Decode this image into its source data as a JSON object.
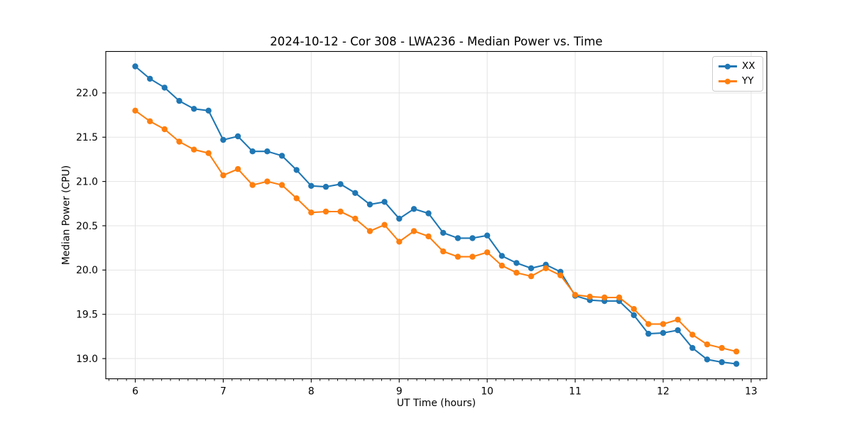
{
  "chart_data": {
    "type": "line",
    "title": "2024-10-12 - Cor 308 - LWA236 - Median Power vs. Time",
    "xlabel": "UT Time (hours)",
    "ylabel": "Median Power (CPU)",
    "grid": true,
    "grid_color": "#e3e3e3",
    "legend_position": "upper right",
    "xlim": [
      5.665,
      13.178
    ],
    "ylim": [
      18.772,
      22.468
    ],
    "xticks": [
      6,
      7,
      8,
      9,
      10,
      11,
      12,
      13
    ],
    "yticks": [
      19.0,
      19.5,
      20.0,
      20.5,
      21.0,
      21.5,
      22.0
    ],
    "x_minor_tick_step": 0.1,
    "marker": "o",
    "x": [
      6.0,
      6.167,
      6.333,
      6.5,
      6.667,
      6.833,
      7.0,
      7.167,
      7.333,
      7.5,
      7.667,
      7.833,
      8.0,
      8.167,
      8.333,
      8.5,
      8.667,
      8.833,
      9.0,
      9.167,
      9.333,
      9.5,
      9.667,
      9.833,
      10.0,
      10.167,
      10.333,
      10.5,
      10.667,
      10.833,
      11.0,
      11.167,
      11.333,
      11.5,
      11.667,
      11.833,
      12.0,
      12.167,
      12.333,
      12.5,
      12.667,
      12.833
    ],
    "series": [
      {
        "name": "XX",
        "color": "#1f77b4",
        "values": [
          22.3,
          22.16,
          22.06,
          21.91,
          21.82,
          21.8,
          21.47,
          21.51,
          21.34,
          21.34,
          21.29,
          21.13,
          20.95,
          20.94,
          20.97,
          20.87,
          20.74,
          20.77,
          20.58,
          20.69,
          20.64,
          20.42,
          20.36,
          20.36,
          20.39,
          20.16,
          20.08,
          20.02,
          20.06,
          19.98,
          19.71,
          19.66,
          19.65,
          19.65,
          19.49,
          19.28,
          19.29,
          19.32,
          19.12,
          18.99,
          18.96,
          18.94
        ]
      },
      {
        "name": "YY",
        "color": "#ff7f0e",
        "values": [
          21.8,
          21.68,
          21.59,
          21.45,
          21.36,
          21.32,
          21.07,
          21.14,
          20.96,
          21.0,
          20.96,
          20.81,
          20.65,
          20.66,
          20.66,
          20.58,
          20.44,
          20.51,
          20.32,
          20.44,
          20.38,
          20.21,
          20.15,
          20.15,
          20.2,
          20.05,
          19.97,
          19.93,
          20.02,
          19.94,
          19.72,
          19.7,
          19.69,
          19.69,
          19.56,
          19.39,
          19.39,
          19.44,
          19.27,
          19.16,
          19.12,
          19.08
        ]
      }
    ]
  }
}
